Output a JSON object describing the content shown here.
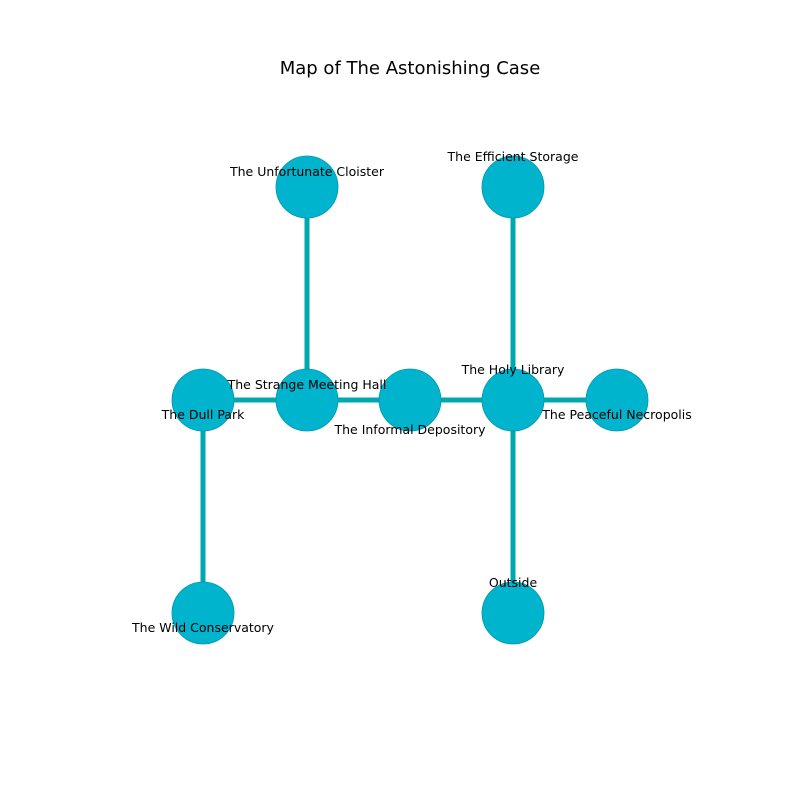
{
  "title": "Map of The Astonishing Case",
  "colors": {
    "node_fill": "#00b4cd",
    "node_stroke": "#0097ad",
    "edge": "#00a8b0",
    "background": "#ffffff"
  },
  "nodes": [
    {
      "id": "unfortunate-cloister",
      "label": "The Unfortunate Cloister"
    },
    {
      "id": "efficient-storage",
      "label": "The Efficient Storage"
    },
    {
      "id": "dull-park",
      "label": "The Dull Park"
    },
    {
      "id": "strange-meeting-hall",
      "label": "The Strange Meeting Hall"
    },
    {
      "id": "informal-depository",
      "label": "The Informal Depository"
    },
    {
      "id": "holy-library",
      "label": "The Holy Library"
    },
    {
      "id": "peaceful-necropolis",
      "label": "The Peaceful Necropolis"
    },
    {
      "id": "wild-conservatory",
      "label": "The Wild Conservatory"
    },
    {
      "id": "outside",
      "label": "Outside"
    }
  ],
  "edges": [
    [
      "unfortunate-cloister",
      "strange-meeting-hall"
    ],
    [
      "efficient-storage",
      "holy-library"
    ],
    [
      "dull-park",
      "strange-meeting-hall"
    ],
    [
      "strange-meeting-hall",
      "informal-depository"
    ],
    [
      "informal-depository",
      "holy-library"
    ],
    [
      "holy-library",
      "peaceful-necropolis"
    ],
    [
      "dull-park",
      "wild-conservatory"
    ],
    [
      "holy-library",
      "outside"
    ]
  ]
}
